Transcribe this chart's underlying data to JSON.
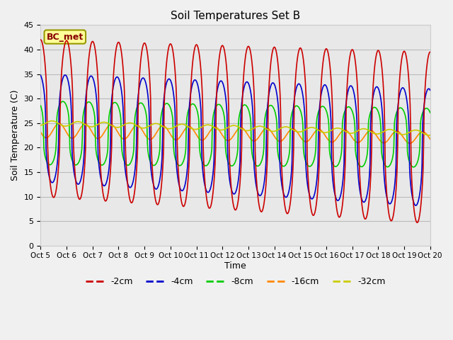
{
  "title": "Soil Temperatures Set B",
  "xlabel": "Time",
  "ylabel": "Soil Temperature (C)",
  "ylim": [
    0,
    45
  ],
  "annotation": "BC_met",
  "legend_labels": [
    "-2cm",
    "-4cm",
    "-8cm",
    "-16cm",
    "-32cm"
  ],
  "legend_colors": [
    "#cc0000",
    "#0000cc",
    "#00cc00",
    "#ff8800",
    "#cccc00"
  ],
  "xtick_labels": [
    "Oct 5",
    "Oct 6",
    "Oct 7",
    "Oct 8",
    "Oct 9",
    "Oct 10",
    "Oct 11",
    "Oct 12",
    "Oct 13",
    "Oct 14",
    "Oct 15",
    "Oct 16",
    "Oct 17",
    "Oct 18",
    "Oct 19",
    "Oct 20"
  ],
  "n_days": 15,
  "pts_per_day": 48,
  "figsize": [
    6.4,
    4.8
  ],
  "dpi": 100,
  "bg_color": "#e8e8e8",
  "fig_bg": "#f0f0f0"
}
